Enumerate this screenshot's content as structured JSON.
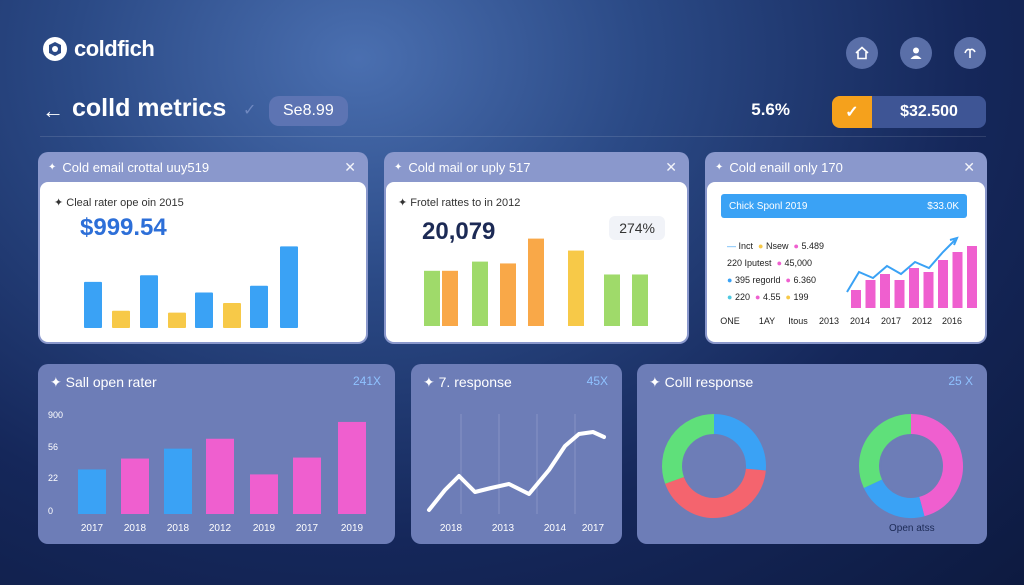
{
  "brand": {
    "name": "coldfich"
  },
  "top_icons": [
    "home-icon",
    "user-icon",
    "curve-icon"
  ],
  "header": {
    "title": "colld metrics",
    "pill": "Se8.99",
    "percent": "5.6%",
    "amount": "$32.500"
  },
  "cards_top": [
    {
      "title": "Cold email crottal uuy519",
      "subtitle": "Cleal rater ope oin 2015",
      "value": "$999.54"
    },
    {
      "title": "Cold mail or uply 517",
      "subtitle": "Frotel rattes to in 2012",
      "value": "20,079",
      "badge": "274%"
    },
    {
      "title": "Cold enaill only 170",
      "bar_label": "Chick Sponl 2019",
      "bar_value": "$33.0K",
      "legend": [
        {
          "a": "Inct",
          "b": "Nsew",
          "c": "5.489"
        },
        {
          "a": "220 Iputest",
          "b": "45,000"
        },
        {
          "a": "395 regorld",
          "b": "6.360"
        },
        {
          "a": "220",
          "b": "4.55",
          "c": "199"
        }
      ],
      "x_labels": [
        "ONE",
        "1AY",
        "Itous",
        "2013",
        "2014",
        "2017",
        "2012",
        "2016"
      ]
    }
  ],
  "cards_bottom": [
    {
      "title": "Sall open rater",
      "right": "241X"
    },
    {
      "title": "7. response",
      "right": "45X"
    },
    {
      "title": "Colll response",
      "right": "25 X",
      "caption": "Open atss"
    }
  ],
  "chart_data": [
    {
      "type": "bar",
      "values": [
        48,
        18,
        55,
        16,
        37,
        26,
        44,
        85
      ]
    },
    {
      "type": "bar",
      "values": [
        60,
        60,
        70,
        68,
        95,
        82,
        56,
        56
      ]
    },
    {
      "type": "line",
      "values": [
        40,
        52,
        36,
        48,
        62,
        50,
        70,
        45,
        60,
        78
      ]
    },
    {
      "type": "bar",
      "categories": [
        "2017",
        "2018",
        "2018",
        "2012",
        "2019",
        "2017",
        "2019"
      ],
      "y_ticks": [
        "900",
        "56",
        "22",
        "0"
      ],
      "values": [
        45,
        56,
        66,
        76,
        40,
        57,
        93
      ]
    },
    {
      "type": "line",
      "x": [
        "2018",
        "2013",
        "2014",
        "2017"
      ]
    },
    {
      "type": "pie"
    }
  ],
  "colors": {
    "blue": "#3aa2f5",
    "yellow": "#f7c948",
    "green": "#9fda6a",
    "orange": "#f9a848",
    "pink": "#ef5fcf",
    "teal": "#4ec9e0"
  }
}
